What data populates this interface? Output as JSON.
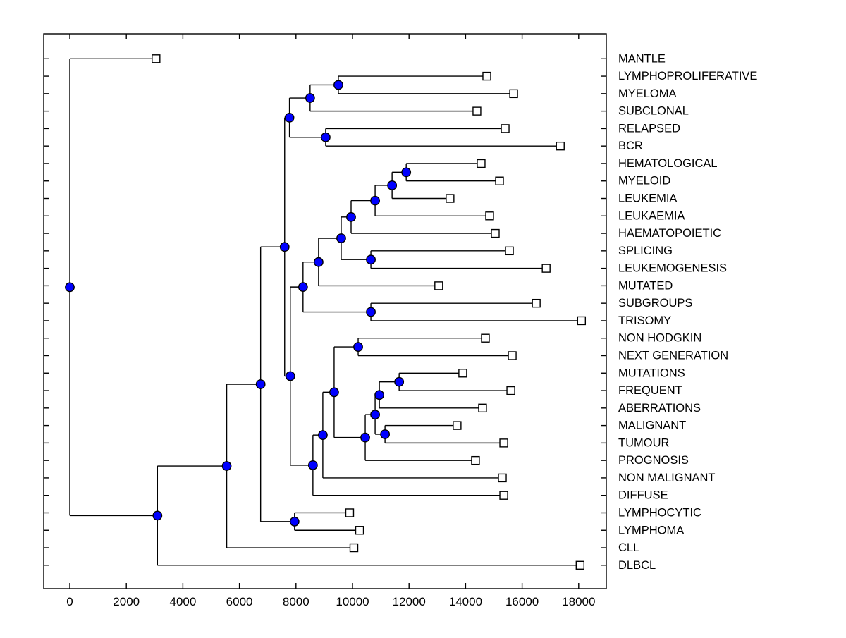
{
  "figure": {
    "background": "#FFFFFF",
    "colors": {
      "branch_line": "#000000",
      "axis_line": "#000000",
      "node_dot_fill": "#0000FF",
      "node_dot_edge": "#000000",
      "leaf_marker_fill": "#FFFFFF",
      "leaf_marker_edge": "#000000",
      "text": "#000000"
    }
  },
  "chart_data": {
    "type": "dendrogram",
    "subtype": "phylogenetic-tree-square-branches",
    "orientation": "root-left-leaves-right",
    "title": "",
    "xlabel": "",
    "ylabel": "",
    "grid": false,
    "legend": null,
    "x_axis": {
      "range": [
        -920,
        18980
      ],
      "ticks": [
        0,
        2000,
        4000,
        6000,
        8000,
        10000,
        12000,
        14000,
        16000,
        18000
      ],
      "tick_labels": [
        "0",
        "2000",
        "4000",
        "6000",
        "8000",
        "10000",
        "12000",
        "14000",
        "16000",
        "18000"
      ],
      "ticks_on_top_and_bottom": true
    },
    "y_axis": {
      "tick_per_leaf_row": true,
      "rows": 30
    },
    "markers": {
      "internal_node": {
        "shape": "circle",
        "fill": "#0000FF",
        "edge": "#000000"
      },
      "leaf_node": {
        "shape": "square",
        "fill": "#FFFFFF",
        "edge": "#000000"
      }
    },
    "leaves": [
      {
        "label": "MANTLE",
        "distance": 3050
      },
      {
        "label": "LYMPHOPROLIFERATIVE",
        "distance": 14750
      },
      {
        "label": "MYELOMA",
        "distance": 15700
      },
      {
        "label": "SUBCLONAL",
        "distance": 14400
      },
      {
        "label": "RELAPSED",
        "distance": 15400
      },
      {
        "label": "BCR",
        "distance": 17350
      },
      {
        "label": "HEMATOLOGICAL",
        "distance": 14550
      },
      {
        "label": "MYELOID",
        "distance": 15200
      },
      {
        "label": "LEUKEMIA",
        "distance": 13450
      },
      {
        "label": "LEUKAEMIA",
        "distance": 14850
      },
      {
        "label": "HAEMATOPOIETIC",
        "distance": 15050
      },
      {
        "label": "SPLICING",
        "distance": 15550
      },
      {
        "label": "LEUKEMOGENESIS",
        "distance": 16850
      },
      {
        "label": "MUTATED",
        "distance": 13050
      },
      {
        "label": "SUBGROUPS",
        "distance": 16500
      },
      {
        "label": "TRISOMY",
        "distance": 18100
      },
      {
        "label": "NON HODGKIN",
        "distance": 14700
      },
      {
        "label": "NEXT GENERATION",
        "distance": 15650
      },
      {
        "label": "MUTATIONS",
        "distance": 13900
      },
      {
        "label": "FREQUENT",
        "distance": 15600
      },
      {
        "label": "ABERRATIONS",
        "distance": 14600
      },
      {
        "label": "MALIGNANT",
        "distance": 13700
      },
      {
        "label": "TUMOUR",
        "distance": 15350
      },
      {
        "label": "PROGNOSIS",
        "distance": 14350
      },
      {
        "label": "NON MALIGNANT",
        "distance": 15300
      },
      {
        "label": "DIFFUSE",
        "distance": 15350
      },
      {
        "label": "LYMPHOCYTIC",
        "distance": 9900
      },
      {
        "label": "LYMPHOMA",
        "distance": 10250
      },
      {
        "label": "CLL",
        "distance": 10050
      },
      {
        "label": "DLBCL",
        "distance": 18050
      }
    ],
    "tree": {
      "distance": 0,
      "children": [
        {
          "leaf": 0
        },
        {
          "distance": 3100,
          "children": [
            {
              "distance": 5550,
              "children": [
                {
                  "distance": 6750,
                  "children": [
                    {
                      "distance": 7600,
                      "children": [
                        {
                          "distance": 7770,
                          "children": [
                            {
                              "distance": 8500,
                              "children": [
                                {
                                  "distance": 9500,
                                  "children": [
                                    {
                                      "leaf": 1
                                    },
                                    {
                                      "leaf": 2
                                    }
                                  ]
                                },
                                {
                                  "leaf": 3
                                }
                              ]
                            },
                            {
                              "distance": 9050,
                              "children": [
                                {
                                  "leaf": 4
                                },
                                {
                                  "leaf": 5
                                }
                              ]
                            }
                          ]
                        },
                        {
                          "distance": 7800,
                          "children": [
                            {
                              "distance": 8250,
                              "children": [
                                {
                                  "distance": 8800,
                                  "children": [
                                    {
                                      "distance": 9600,
                                      "children": [
                                        {
                                          "distance": 9950,
                                          "children": [
                                            {
                                              "distance": 10800,
                                              "children": [
                                                {
                                                  "distance": 11400,
                                                  "children": [
                                                    {
                                                      "distance": 11900,
                                                      "children": [
                                                        {
                                                          "leaf": 6
                                                        },
                                                        {
                                                          "leaf": 7
                                                        }
                                                      ]
                                                    },
                                                    {
                                                      "leaf": 8
                                                    }
                                                  ]
                                                },
                                                {
                                                  "leaf": 9
                                                }
                                              ]
                                            },
                                            {
                                              "leaf": 10
                                            }
                                          ]
                                        },
                                        {
                                          "distance": 10650,
                                          "children": [
                                            {
                                              "leaf": 11
                                            },
                                            {
                                              "leaf": 12
                                            }
                                          ]
                                        }
                                      ]
                                    },
                                    {
                                      "leaf": 13
                                    }
                                  ]
                                },
                                {
                                  "distance": 10650,
                                  "children": [
                                    {
                                      "leaf": 14
                                    },
                                    {
                                      "leaf": 15
                                    }
                                  ]
                                }
                              ]
                            },
                            {
                              "distance": 8600,
                              "children": [
                                {
                                  "distance": 8950,
                                  "children": [
                                    {
                                      "distance": 9350,
                                      "children": [
                                        {
                                          "distance": 10200,
                                          "children": [
                                            {
                                              "leaf": 16
                                            },
                                            {
                                              "leaf": 17
                                            }
                                          ]
                                        },
                                        {
                                          "distance": 10450,
                                          "children": [
                                            {
                                              "distance": 10800,
                                              "children": [
                                                {
                                                  "distance": 10950,
                                                  "children": [
                                                    {
                                                      "distance": 11650,
                                                      "children": [
                                                        {
                                                          "leaf": 18
                                                        },
                                                        {
                                                          "leaf": 19
                                                        }
                                                      ]
                                                    },
                                                    {
                                                      "leaf": 20
                                                    }
                                                  ]
                                                },
                                                {
                                                  "distance": 11150,
                                                  "children": [
                                                    {
                                                      "leaf": 21
                                                    },
                                                    {
                                                      "leaf": 22
                                                    }
                                                  ]
                                                }
                                              ]
                                            },
                                            {
                                              "leaf": 23
                                            }
                                          ]
                                        }
                                      ]
                                    },
                                    {
                                      "leaf": 24
                                    }
                                  ]
                                },
                                {
                                  "leaf": 25
                                }
                              ]
                            }
                          ]
                        }
                      ]
                    },
                    {
                      "distance": 7950,
                      "children": [
                        {
                          "leaf": 26
                        },
                        {
                          "leaf": 27
                        }
                      ]
                    }
                  ]
                },
                {
                  "leaf": 28
                }
              ]
            },
            {
              "leaf": 29
            }
          ]
        }
      ]
    }
  }
}
